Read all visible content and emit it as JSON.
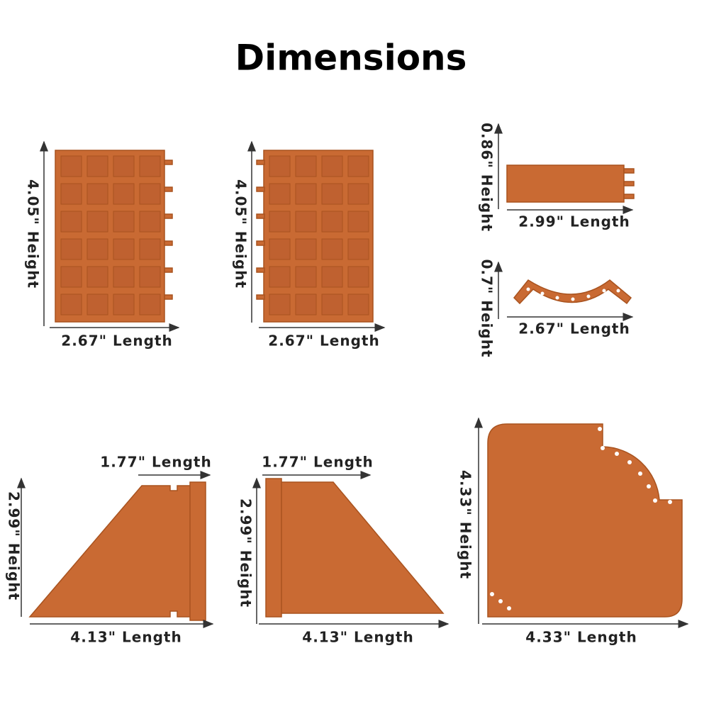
{
  "title": "Dimensions",
  "pieces": [
    {
      "height": "4.05\" Height",
      "length": "2.67\" Length"
    },
    {
      "height": "4.05\" Height",
      "length": "2.67\" Length"
    },
    {
      "height": "0.86\" Height",
      "length": "2.99\" Length"
    },
    {
      "height": "0.7\" Height",
      "length": "2.67\" Length"
    },
    {
      "height": "2.99\" Height",
      "length": "4.13\" Length",
      "top_length": "1.77\" Length"
    },
    {
      "height": "2.99\" Height",
      "length": "4.13\" Length",
      "top_length": "1.77\" Length"
    },
    {
      "height": "4.33\" Height",
      "length": "4.33\" Length"
    }
  ]
}
